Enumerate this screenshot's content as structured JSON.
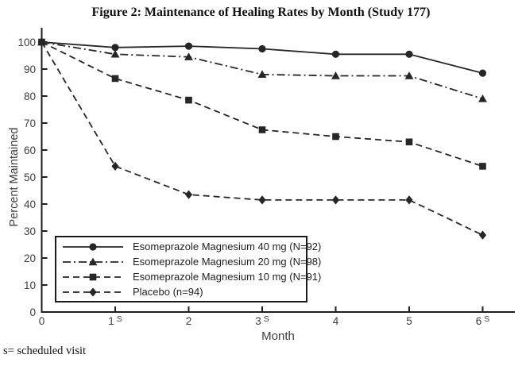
{
  "chart_data": {
    "type": "line",
    "title": "Figure 2: Maintenance of Healing Rates by Month (Study 177)",
    "xlabel": "Month",
    "ylabel": "Percent Maintained",
    "footnote": "s= scheduled visit",
    "x": [
      0,
      1,
      2,
      3,
      4,
      5,
      6
    ],
    "x_ticks": [
      {
        "label": "0",
        "sup": ""
      },
      {
        "label": "1",
        "sup": "S"
      },
      {
        "label": "2",
        "sup": ""
      },
      {
        "label": "3",
        "sup": "S"
      },
      {
        "label": "4",
        "sup": ""
      },
      {
        "label": "5",
        "sup": ""
      },
      {
        "label": "6",
        "sup": "S"
      }
    ],
    "y_ticks": [
      0,
      10,
      20,
      30,
      40,
      50,
      60,
      70,
      80,
      90,
      100
    ],
    "ylim": [
      0,
      100
    ],
    "xlim": [
      0,
      6.45
    ],
    "grid": false,
    "legend_position": "lower-left-inside",
    "line_color": "#262626",
    "series": [
      {
        "label": "Esomeprazole Magnesium 40 mg (N=92)",
        "marker": "circle",
        "line_style": "solid",
        "values": [
          100,
          98,
          98.5,
          97.5,
          95.5,
          95.5,
          88.5
        ]
      },
      {
        "label": "Esomeprazole Magnesium 20 mg (N=98)",
        "marker": "triangle",
        "line_style": "dash-dot",
        "values": [
          100,
          95.5,
          94.5,
          88,
          87.5,
          87.5,
          79
        ]
      },
      {
        "label": "Esomeprazole Magnesium 10 mg (N=91)",
        "marker": "square",
        "line_style": "dashed",
        "values": [
          100,
          86.5,
          78.5,
          67.5,
          65,
          63,
          54
        ]
      },
      {
        "label": "Placebo (n=94)",
        "marker": "diamond",
        "line_style": "dashed",
        "values": [
          100,
          54,
          43.5,
          41.5,
          41.5,
          41.5,
          28.5
        ]
      }
    ]
  }
}
